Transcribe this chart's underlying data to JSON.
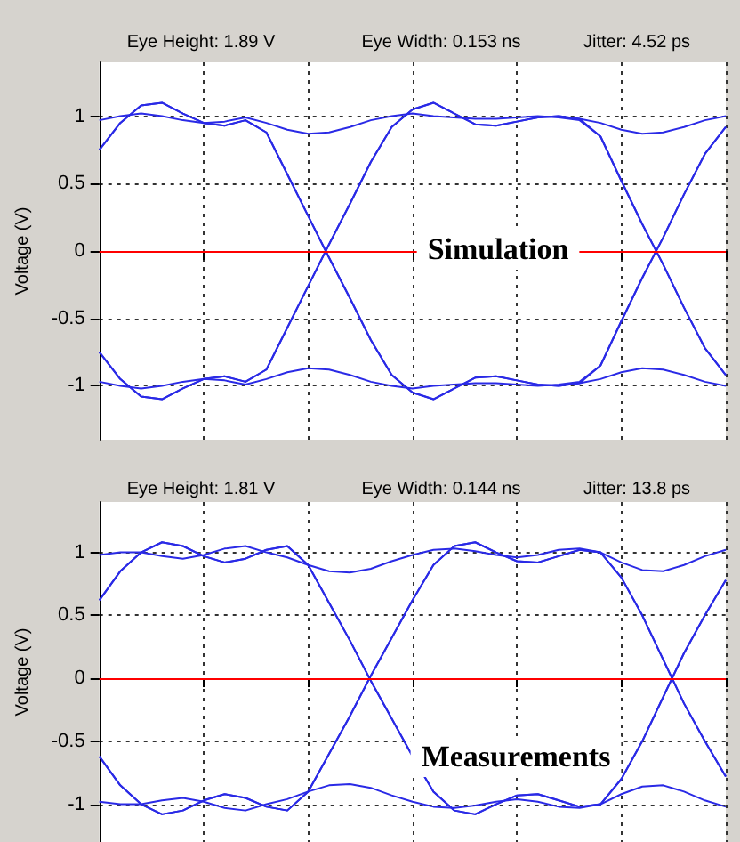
{
  "chart_data": [
    {
      "type": "line",
      "ylabel": "Voltage (V)",
      "ylim": [
        -1.4,
        1.4
      ],
      "yticks": [
        -1,
        -0.5,
        0,
        0.5,
        1
      ],
      "grid": true,
      "annotations": [
        "Eye Height: 1.89 V",
        "Eye Width: 0.153 ns",
        "Jitter: 4.52 ps",
        "Simulation"
      ],
      "ref_lines": [
        {
          "axis": "y",
          "value": 0,
          "color": "#ff0000"
        }
      ],
      "categories": [
        null,
        null,
        null,
        null,
        null,
        null,
        null,
        null,
        null,
        null,
        null,
        null,
        null,
        null,
        null,
        null,
        null,
        null,
        null,
        null,
        null,
        null,
        null,
        null,
        null,
        null,
        null,
        null,
        null,
        null,
        null
      ],
      "series": [
        {
          "color": "#2a2ae6",
          "values": [
            0.75,
            0.95,
            1.08,
            1.1,
            1.02,
            0.95,
            0.93,
            0.97,
            0.88,
            0.57,
            0.26,
            -0.05,
            -0.35,
            -0.66,
            -0.92,
            -1.05,
            -1.1,
            -1.02,
            -0.94,
            -0.93,
            -0.96,
            -0.99,
            -1.0,
            -0.98,
            -0.85,
            -0.52,
            -0.2,
            0.1,
            0.42,
            0.72,
            0.92
          ]
        },
        {
          "color": "#2a2ae6",
          "values": [
            -0.75,
            -0.95,
            -1.08,
            -1.1,
            -1.02,
            -0.95,
            -0.93,
            -0.97,
            -0.88,
            -0.57,
            -0.26,
            0.05,
            0.35,
            0.66,
            0.92,
            1.05,
            1.1,
            1.02,
            0.94,
            0.93,
            0.96,
            0.99,
            1.0,
            0.98,
            0.85,
            0.52,
            0.2,
            -0.1,
            -0.42,
            -0.72,
            -0.92
          ]
        },
        {
          "color": "#2a2ae6",
          "values": [
            0.97,
            1.0,
            1.02,
            1.0,
            0.97,
            0.95,
            0.96,
            0.99,
            0.95,
            0.9,
            0.87,
            0.88,
            0.92,
            0.97,
            1.0,
            1.02,
            1.0,
            0.99,
            0.98,
            0.98,
            0.99,
            1.0,
            0.99,
            0.97,
            0.85,
            0.52,
            0.2,
            -0.1,
            -0.42,
            -0.72,
            -0.92
          ]
        },
        {
          "color": "#2a2ae6",
          "values": [
            -0.97,
            -1.0,
            -1.02,
            -1.0,
            -0.97,
            -0.95,
            -0.96,
            -0.99,
            -0.95,
            -0.9,
            -0.87,
            -0.88,
            -0.92,
            -0.97,
            -1.0,
            -1.02,
            -1.0,
            -0.99,
            -0.98,
            -0.98,
            -0.99,
            -1.0,
            -0.99,
            -0.97,
            -0.85,
            -0.52,
            -0.2,
            0.1,
            0.42,
            0.72,
            0.92
          ]
        },
        {
          "color": "#2a2ae6",
          "values": [
            -0.75,
            -0.95,
            -1.08,
            -1.1,
            -1.02,
            -0.95,
            -0.93,
            -0.97,
            -0.88,
            -0.57,
            -0.26,
            0.05,
            0.35,
            0.66,
            0.92,
            1.05,
            1.1,
            1.02,
            0.94,
            0.93,
            0.96,
            0.99,
            1.0,
            0.98,
            0.95,
            0.9,
            0.87,
            0.88,
            0.92,
            0.97,
            1.0
          ]
        },
        {
          "color": "#2a2ae6",
          "values": [
            0.75,
            0.95,
            1.08,
            1.1,
            1.02,
            0.95,
            0.93,
            0.97,
            0.88,
            0.57,
            0.26,
            -0.05,
            -0.35,
            -0.66,
            -0.92,
            -1.05,
            -1.1,
            -1.02,
            -0.94,
            -0.93,
            -0.96,
            -0.99,
            -1.0,
            -0.98,
            -0.95,
            -0.9,
            -0.87,
            -0.88,
            -0.92,
            -0.97,
            -1.0
          ]
        }
      ]
    },
    {
      "type": "line",
      "ylabel": "Voltage (V)",
      "ylim": [
        -1.3,
        1.4
      ],
      "yticks": [
        -1,
        -0.5,
        0,
        0.5,
        1
      ],
      "grid": true,
      "annotations": [
        "Eye Height: 1.81 V",
        "Eye Width: 0.144 ns",
        "Jitter: 13.8 ps",
        "Measurements"
      ],
      "ref_lines": [
        {
          "axis": "y",
          "value": 0,
          "color": "#ff0000"
        }
      ],
      "categories": [
        null,
        null,
        null,
        null,
        null,
        null,
        null,
        null,
        null,
        null,
        null,
        null,
        null,
        null,
        null,
        null,
        null,
        null,
        null,
        null,
        null,
        null,
        null,
        null,
        null,
        null,
        null,
        null,
        null,
        null,
        null
      ],
      "series": [
        {
          "color": "#2a2ae6",
          "values": [
            0.62,
            0.85,
            1.0,
            1.08,
            1.05,
            0.97,
            0.92,
            0.95,
            1.02,
            1.05,
            0.9,
            0.6,
            0.3,
            -0.02,
            -0.32,
            -0.62,
            -0.9,
            -1.05,
            -1.08,
            -1.0,
            -0.93,
            -0.92,
            -0.97,
            -1.02,
            -1.0,
            -0.8,
            -0.5,
            -0.15,
            0.2,
            0.5,
            0.78
          ]
        },
        {
          "color": "#2a2ae6",
          "values": [
            -0.62,
            -0.85,
            -1.0,
            -1.08,
            -1.05,
            -0.97,
            -0.92,
            -0.95,
            -1.02,
            -1.05,
            -0.9,
            -0.6,
            -0.3,
            0.02,
            0.32,
            0.62,
            0.9,
            1.05,
            1.08,
            1.0,
            0.93,
            0.92,
            0.97,
            1.02,
            1.0,
            0.8,
            0.5,
            0.15,
            -0.2,
            -0.5,
            -0.78
          ]
        },
        {
          "color": "#2a2ae6",
          "values": [
            0.98,
            1.0,
            1.0,
            0.97,
            0.95,
            0.98,
            1.03,
            1.05,
            1.0,
            0.96,
            0.9,
            0.85,
            0.84,
            0.87,
            0.93,
            0.98,
            1.02,
            1.03,
            1.01,
            0.98,
            0.96,
            0.98,
            1.02,
            1.03,
            1.0,
            0.8,
            0.5,
            0.15,
            -0.2,
            -0.5,
            -0.78
          ]
        },
        {
          "color": "#2a2ae6",
          "values": [
            -0.98,
            -1.0,
            -1.0,
            -0.97,
            -0.95,
            -0.98,
            -1.03,
            -1.05,
            -1.0,
            -0.96,
            -0.9,
            -0.85,
            -0.84,
            -0.87,
            -0.93,
            -0.98,
            -1.02,
            -1.03,
            -1.01,
            -0.98,
            -0.96,
            -0.98,
            -1.02,
            -1.03,
            -1.0,
            -0.8,
            -0.5,
            -0.15,
            0.2,
            0.5,
            0.78
          ]
        },
        {
          "color": "#2a2ae6",
          "values": [
            -0.62,
            -0.85,
            -1.0,
            -1.08,
            -1.05,
            -0.97,
            -0.92,
            -0.95,
            -1.02,
            -1.05,
            -0.9,
            -0.6,
            -0.3,
            0.02,
            0.32,
            0.62,
            0.9,
            1.05,
            1.08,
            1.0,
            0.93,
            0.92,
            0.97,
            1.02,
            1.0,
            0.92,
            0.86,
            0.85,
            0.9,
            0.97,
            1.02
          ]
        },
        {
          "color": "#2a2ae6",
          "values": [
            0.62,
            0.85,
            1.0,
            1.08,
            1.05,
            0.97,
            0.92,
            0.95,
            1.02,
            1.05,
            0.9,
            0.6,
            0.3,
            -0.02,
            -0.32,
            -0.62,
            -0.9,
            -1.05,
            -1.08,
            -1.0,
            -0.93,
            -0.92,
            -0.97,
            -1.02,
            -1.0,
            -0.92,
            -0.86,
            -0.85,
            -0.9,
            -0.97,
            -1.02
          ]
        }
      ]
    }
  ]
}
